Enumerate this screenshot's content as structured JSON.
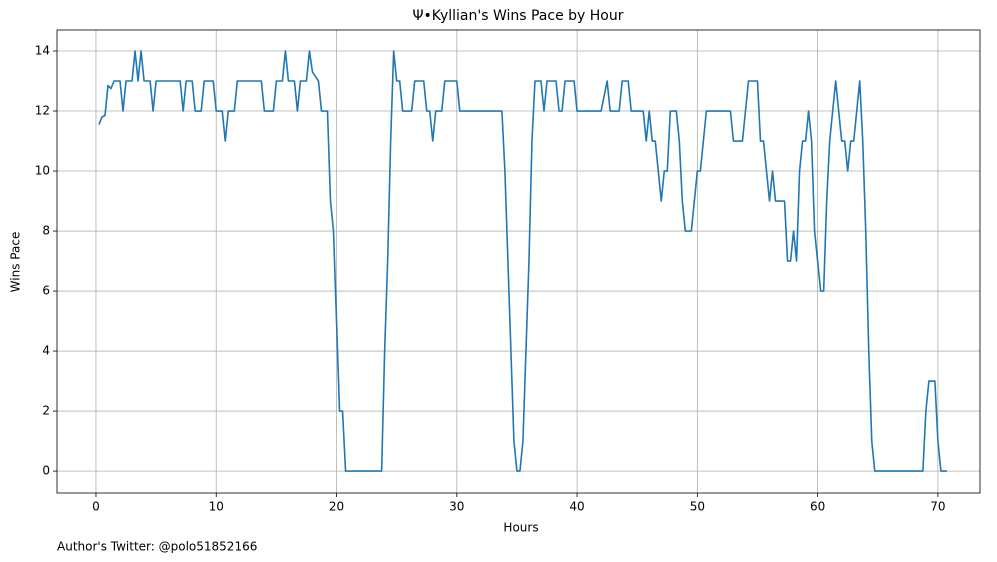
{
  "chart_data": {
    "type": "line",
    "title": "Ψ•Kyllian's Wins Pace by Hour",
    "x_label": "Hours",
    "y_label": "Wins Pace",
    "annotation": "Author's Twitter: @polo51852166",
    "color": "#1f77b4",
    "grid": true,
    "xlim": [
      -3.24,
      73.5
    ],
    "ylim": [
      -0.73,
      14.7
    ],
    "xticks": [
      0,
      10,
      20,
      30,
      40,
      50,
      60,
      70
    ],
    "yticks": [
      0,
      2,
      4,
      6,
      8,
      10,
      12,
      14
    ],
    "x": [
      0.25,
      0.5,
      0.75,
      1.0,
      1.25,
      1.5,
      2.0,
      2.25,
      2.5,
      3.0,
      3.25,
      3.5,
      3.75,
      4.0,
      4.5,
      4.75,
      5.0,
      7.0,
      7.25,
      7.5,
      8.0,
      8.25,
      8.75,
      9.0,
      9.75,
      10.0,
      10.5,
      10.75,
      11.0,
      11.5,
      11.75,
      13.75,
      14.0,
      14.75,
      15.0,
      15.5,
      15.75,
      16.0,
      16.5,
      16.75,
      17.0,
      17.5,
      17.75,
      18.0,
      18.5,
      18.75,
      19.25,
      19.5,
      19.75,
      20.0,
      20.25,
      20.5,
      20.75,
      23.75,
      24.0,
      24.25,
      24.5,
      24.75,
      25.0,
      25.25,
      25.5,
      26.25,
      26.5,
      27.25,
      27.5,
      27.75,
      28.0,
      28.25,
      28.75,
      29.0,
      30.0,
      30.25,
      33.75,
      34.0,
      34.25,
      34.5,
      34.75,
      35.0,
      35.25,
      35.5,
      35.75,
      36.0,
      36.25,
      36.5,
      37.0,
      37.25,
      37.5,
      38.25,
      38.5,
      38.75,
      39.0,
      39.75,
      40.0,
      42.0,
      42.5,
      42.75,
      43.5,
      43.75,
      44.25,
      44.5,
      45.5,
      45.75,
      46.0,
      46.25,
      46.5,
      46.75,
      47.0,
      47.25,
      47.5,
      47.75,
      48.25,
      48.5,
      48.75,
      49.0,
      49.5,
      49.75,
      50.0,
      50.25,
      50.75,
      52.75,
      53.0,
      53.75,
      54.0,
      54.25,
      55.0,
      55.25,
      55.5,
      56.0,
      56.25,
      56.5,
      57.25,
      57.5,
      57.75,
      58.0,
      58.25,
      58.5,
      58.75,
      59.0,
      59.25,
      59.5,
      59.75,
      60.0,
      60.25,
      60.5,
      60.75,
      61.0,
      61.25,
      61.5,
      62.0,
      62.25,
      62.5,
      62.75,
      63.0,
      63.25,
      63.5,
      63.75,
      64.0,
      64.25,
      64.5,
      64.75,
      68.75,
      69.0,
      69.25,
      69.75,
      70.0,
      70.25,
      70.75
    ],
    "values": [
      11.55,
      11.8,
      11.85,
      12.85,
      12.75,
      13,
      13,
      12,
      13,
      13,
      14,
      13,
      14,
      13,
      13,
      12,
      13,
      13,
      12,
      13,
      13,
      12,
      12,
      13,
      13,
      12,
      12,
      11,
      12,
      12,
      13,
      13,
      12,
      12,
      13,
      13,
      14,
      13,
      13,
      12,
      13,
      13,
      14,
      13.3,
      13,
      12,
      12,
      9,
      8,
      5,
      2,
      2,
      0,
      0,
      4,
      7,
      11,
      14,
      13,
      13,
      12,
      12,
      13,
      13,
      12,
      12,
      11,
      12,
      12,
      13,
      13,
      12,
      12,
      10,
      7,
      4,
      1,
      0,
      0,
      1,
      4,
      7,
      11,
      13,
      13,
      12,
      13,
      13,
      12,
      12,
      13,
      13,
      12,
      12,
      13,
      12,
      12,
      13,
      13,
      12,
      12,
      11,
      12,
      11,
      11,
      10,
      9,
      10,
      10,
      12,
      12,
      11,
      9,
      8,
      8,
      9,
      10,
      10,
      12,
      12,
      11,
      11,
      12,
      13,
      13,
      11,
      11,
      9,
      10,
      9,
      9,
      7,
      7,
      8,
      7,
      10,
      11,
      11,
      12,
      11,
      8,
      7,
      6,
      6,
      9,
      11,
      12,
      13,
      11,
      11,
      10,
      11,
      11,
      12,
      13,
      11,
      8,
      4,
      1,
      0,
      0,
      2,
      3,
      3,
      1,
      0,
      0
    ]
  }
}
